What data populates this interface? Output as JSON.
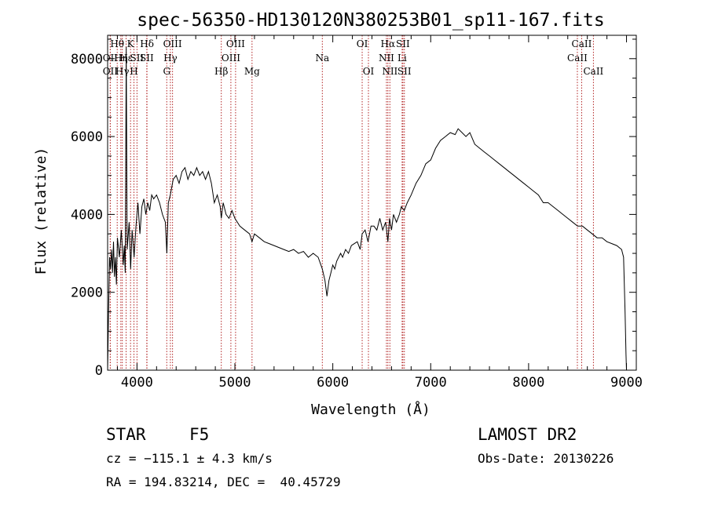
{
  "chart_data": {
    "type": "line",
    "title": "spec-56350-HD130120N380253B01_sp11-167.fits",
    "xlabel": "Wavelength (Å)",
    "ylabel": "Flux (relative)",
    "xlim": [
      3700,
      9100
    ],
    "ylim": [
      0,
      8600
    ],
    "xticks": [
      4000,
      5000,
      6000,
      7000,
      8000,
      9000
    ],
    "yticks": [
      0,
      2000,
      4000,
      6000,
      8000
    ],
    "grid": false,
    "legend": "none",
    "line_color": "#000000",
    "marker_color": "#b22222",
    "spectral_lines": [
      {
        "label": "Hθ",
        "wavelength": 3798,
        "row": 1
      },
      {
        "label": "OII",
        "wavelength": 3727,
        "row": 2
      },
      {
        "label": "Hη",
        "wavelength": 3835,
        "row": 2
      },
      {
        "label": "OII",
        "wavelength": 3727,
        "row": 3
      },
      {
        "label": "Hε",
        "wavelength": 3889,
        "row": 2
      },
      {
        "label": "Hγ",
        "wavelength": 3850,
        "row": 3
      },
      {
        "label": "K",
        "wavelength": 3934,
        "row": 1
      },
      {
        "label": "H",
        "wavelength": 3969,
        "row": 3
      },
      {
        "label": "SII",
        "wavelength": 4000,
        "row": 2
      },
      {
        "label": "Hδ",
        "wavelength": 4102,
        "row": 1
      },
      {
        "label": "SII",
        "wavelength": 4100,
        "row": 2
      },
      {
        "label": "OIII",
        "wavelength": 4363,
        "row": 1
      },
      {
        "label": "Hγ",
        "wavelength": 4341,
        "row": 2
      },
      {
        "label": "G",
        "wavelength": 4304,
        "row": 3
      },
      {
        "label": "OIII",
        "wavelength": 5007,
        "row": 1
      },
      {
        "label": "OIII",
        "wavelength": 4959,
        "row": 2
      },
      {
        "label": "Hβ",
        "wavelength": 4861,
        "row": 3
      },
      {
        "label": "Mg",
        "wavelength": 5175,
        "row": 3
      },
      {
        "label": "Na",
        "wavelength": 5893,
        "row": 2
      },
      {
        "label": "OI",
        "wavelength": 6300,
        "row": 1
      },
      {
        "label": "OI",
        "wavelength": 6364,
        "row": 3
      },
      {
        "label": "Hα",
        "wavelength": 6563,
        "row": 1
      },
      {
        "label": "SII",
        "wavelength": 6716,
        "row": 1
      },
      {
        "label": "NII",
        "wavelength": 6548,
        "row": 2
      },
      {
        "label": "Li",
        "wavelength": 6708,
        "row": 2
      },
      {
        "label": "NII",
        "wavelength": 6583,
        "row": 3
      },
      {
        "label": "SII",
        "wavelength": 6731,
        "row": 3
      },
      {
        "label": "CaII",
        "wavelength": 8542,
        "row": 1
      },
      {
        "label": "CaII",
        "wavelength": 8498,
        "row": 2
      },
      {
        "label": "CaII",
        "wavelength": 8662,
        "row": 3
      }
    ],
    "series": [
      {
        "x": [
          3700,
          3710,
          3720,
          3730,
          3740,
          3750,
          3760,
          3770,
          3780,
          3790,
          3800,
          3820,
          3840,
          3860,
          3870,
          3880,
          3890,
          3900,
          3920,
          3935,
          3950,
          3970,
          3990,
          4010,
          4030,
          4050,
          4070,
          4090,
          4110,
          4130,
          4150,
          4170,
          4200,
          4230,
          4260,
          4290,
          4305,
          4320,
          4340,
          4370,
          4400,
          4430,
          4460,
          4490,
          4520,
          4550,
          4580,
          4610,
          4640,
          4670,
          4700,
          4730,
          4760,
          4790,
          4820,
          4850,
          4861,
          4880,
          4910,
          4940,
          4970,
          5000,
          5050,
          5100,
          5150,
          5175,
          5200,
          5250,
          5300,
          5350,
          5400,
          5450,
          5500,
          5550,
          5600,
          5650,
          5700,
          5750,
          5800,
          5850,
          5893,
          5920,
          5940,
          5960,
          5980,
          6000,
          6020,
          6040,
          6060,
          6080,
          6100,
          6130,
          6160,
          6190,
          6220,
          6250,
          6280,
          6300,
          6330,
          6360,
          6390,
          6420,
          6450,
          6480,
          6510,
          6540,
          6563,
          6580,
          6600,
          6620,
          6650,
          6680,
          6700,
          6730,
          6760,
          6800,
          6850,
          6900,
          6950,
          7000,
          7050,
          7100,
          7150,
          7200,
          7250,
          7280,
          7320,
          7360,
          7400,
          7450,
          7500,
          7550,
          7600,
          7650,
          7700,
          7750,
          7800,
          7850,
          7900,
          7950,
          8000,
          8050,
          8100,
          8150,
          8200,
          8250,
          8300,
          8350,
          8400,
          8450,
          8500,
          8550,
          8600,
          8650,
          8700,
          8750,
          8800,
          8850,
          8900,
          8950,
          8970,
          8985,
          8995,
          9000
        ],
        "y": [
          0,
          1500,
          2900,
          2600,
          3100,
          2500,
          3300,
          2400,
          2900,
          2200,
          3400,
          2900,
          3600,
          2700,
          3200,
          2500,
          8300,
          3100,
          3800,
          2600,
          3600,
          2900,
          3700,
          4300,
          3500,
          4200,
          4400,
          4000,
          4300,
          4100,
          4500,
          4400,
          4500,
          4300,
          4000,
          3800,
          3000,
          4300,
          4500,
          4900,
          5000,
          4800,
          5100,
          5200,
          4900,
          5100,
          5000,
          5200,
          5000,
          5100,
          4900,
          5100,
          4800,
          4300,
          4500,
          4200,
          3900,
          4300,
          4000,
          3900,
          4100,
          3900,
          3700,
          3600,
          3500,
          3300,
          3500,
          3400,
          3300,
          3250,
          3200,
          3150,
          3100,
          3050,
          3100,
          3000,
          3050,
          2900,
          3000,
          2900,
          2600,
          2300,
          1900,
          2300,
          2500,
          2700,
          2600,
          2800,
          2900,
          3000,
          2900,
          3100,
          3000,
          3200,
          3250,
          3300,
          3100,
          3500,
          3600,
          3300,
          3700,
          3700,
          3600,
          3900,
          3600,
          3800,
          3300,
          3900,
          3600,
          4000,
          3800,
          4000,
          4200,
          4100,
          4300,
          4500,
          4800,
          5000,
          5300,
          5400,
          5700,
          5900,
          6000,
          6100,
          6050,
          6200,
          6100,
          6000,
          6100,
          5800,
          5700,
          5600,
          5500,
          5400,
          5300,
          5200,
          5100,
          5000,
          4900,
          4800,
          4700,
          4600,
          4500,
          4300,
          4300,
          4200,
          4100,
          4000,
          3900,
          3800,
          3700,
          3700,
          3600,
          3500,
          3400,
          3400,
          3300,
          3250,
          3200,
          3100,
          2900,
          1500,
          400,
          0
        ]
      }
    ]
  },
  "info": {
    "object_class": "STAR",
    "subclass": "F5",
    "survey": "LAMOST DR2",
    "cz": "cz = −115.1 ± 4.3 km/s",
    "obs_date": "Obs-Date: 20130226",
    "coords": "RA = 194.83214, DEC =  40.45729"
  }
}
